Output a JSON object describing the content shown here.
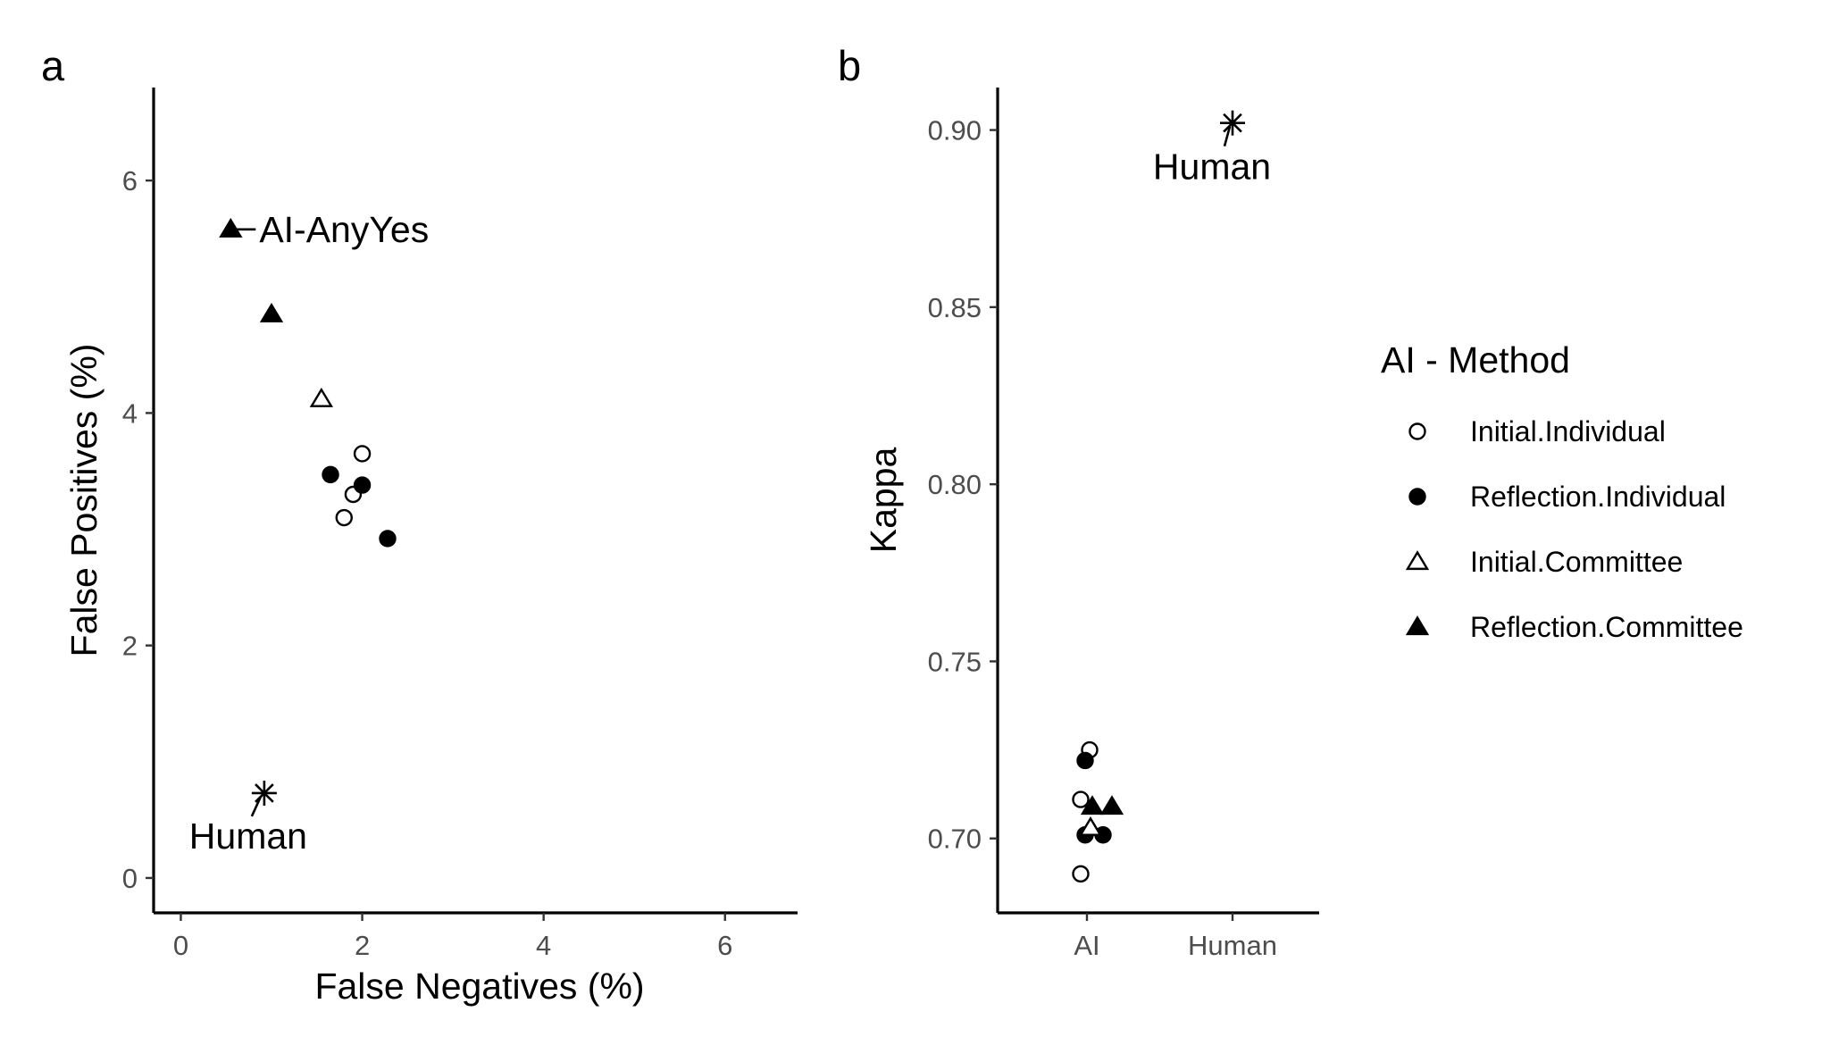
{
  "chart_data": [
    {
      "panel": "a",
      "type": "scatter",
      "xlabel": "False Negatives (%)",
      "ylabel": "False Positives (%)",
      "xlim": [
        -0.3,
        6.8
      ],
      "ylim": [
        -0.3,
        6.8
      ],
      "xticks": [
        "0",
        "2",
        "4",
        "6"
      ],
      "yticks": [
        "0",
        "2",
        "4",
        "6"
      ],
      "grid": false,
      "series": [
        {
          "name": "Initial.Individual",
          "points": [
            [
              2.0,
              3.65
            ],
            [
              1.9,
              3.3
            ],
            [
              1.8,
              3.1
            ]
          ]
        },
        {
          "name": "Reflection.Individual",
          "points": [
            [
              1.65,
              3.47
            ],
            [
              2.0,
              3.38
            ],
            [
              2.28,
              2.92
            ]
          ]
        },
        {
          "name": "Initial.Committee",
          "points": [
            [
              1.55,
              4.12
            ]
          ]
        },
        {
          "name": "Reflection.Committee",
          "points": [
            [
              0.55,
              5.58
            ],
            [
              1.0,
              4.85
            ]
          ]
        },
        {
          "name": "Human",
          "points": [
            [
              0.92,
              0.73
            ]
          ]
        }
      ],
      "annotations": [
        {
          "text": "AI-AnyYes",
          "x": 0.55,
          "y": 5.58
        },
        {
          "text": "Human",
          "x": 0.92,
          "y": 0.73
        }
      ]
    },
    {
      "panel": "b",
      "type": "scatter",
      "xlabel": "",
      "ylabel": "Kappa",
      "categories": [
        "AI",
        "Human"
      ],
      "ylim": [
        0.679,
        0.912
      ],
      "yticks": [
        "0.70",
        "0.75",
        "0.80",
        "0.85",
        "0.90"
      ],
      "grid": false,
      "series": [
        {
          "name": "Initial.Individual",
          "points": [
            [
              "AI",
              0.725
            ],
            [
              "AI",
              0.711
            ],
            [
              "AI",
              0.69
            ]
          ]
        },
        {
          "name": "Reflection.Individual",
          "points": [
            [
              "AI",
              0.722
            ],
            [
              "AI",
              0.701
            ],
            [
              "AI",
              0.701
            ]
          ]
        },
        {
          "name": "Initial.Committee",
          "points": [
            [
              "AI",
              0.703
            ]
          ]
        },
        {
          "name": "Reflection.Committee",
          "points": [
            [
              "AI",
              0.709
            ],
            [
              "AI",
              0.709
            ]
          ]
        },
        {
          "name": "Human",
          "points": [
            [
              "Human",
              0.902
            ]
          ]
        }
      ],
      "annotations": [
        {
          "text": "Human",
          "x": "Human",
          "y": 0.902
        }
      ]
    }
  ],
  "legend": {
    "title": "AI - Method",
    "placement": "right",
    "items": [
      {
        "label": "Initial.Individual",
        "shape": "open-circle"
      },
      {
        "label": "Reflection.Individual",
        "shape": "filled-circle"
      },
      {
        "label": "Initial.Committee",
        "shape": "open-triangle"
      },
      {
        "label": "Reflection.Committee",
        "shape": "filled-triangle"
      }
    ]
  }
}
